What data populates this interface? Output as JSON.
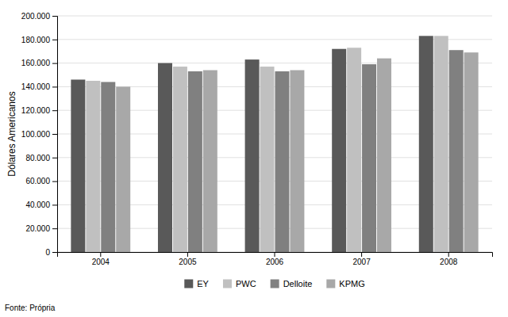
{
  "chart_data": {
    "type": "bar",
    "y_label": "Dólares Americanos",
    "categories": [
      "2004",
      "2005",
      "2006",
      "2007",
      "2008"
    ],
    "series": [
      {
        "name": "EY",
        "color": "#595959",
        "values": [
          146000,
          160000,
          163000,
          172000,
          183000
        ]
      },
      {
        "name": "PWC",
        "color": "#c0c0c0",
        "values": [
          145000,
          157000,
          157000,
          173000,
          183000
        ]
      },
      {
        "name": "Delloite",
        "color": "#808080",
        "values": [
          144000,
          153000,
          153000,
          159000,
          171000
        ]
      },
      {
        "name": "KPMG",
        "color": "#a8a8a8",
        "values": [
          140000,
          154000,
          154000,
          164000,
          169000
        ]
      }
    ],
    "ylim": [
      0,
      200000
    ],
    "yticks": [
      0,
      {
        "value": 20000,
        "label": "20.000"
      },
      {
        "value": 40000,
        "label": "40.000"
      },
      {
        "value": 60000,
        "label": "60.000"
      },
      {
        "value": 80000,
        "label": "80.000"
      },
      {
        "value": 100000,
        "label": "100.000"
      },
      {
        "value": 120000,
        "label": "120.000"
      },
      {
        "value": 140000,
        "label": "140.000"
      },
      {
        "value": 160000,
        "label": "160.000"
      },
      {
        "value": 180000,
        "label": "180.000"
      },
      {
        "value": 200000,
        "label": "200.000"
      }
    ],
    "grid": true,
    "legend": "bottom",
    "annotations": [
      "Fonte: Própria"
    ]
  }
}
